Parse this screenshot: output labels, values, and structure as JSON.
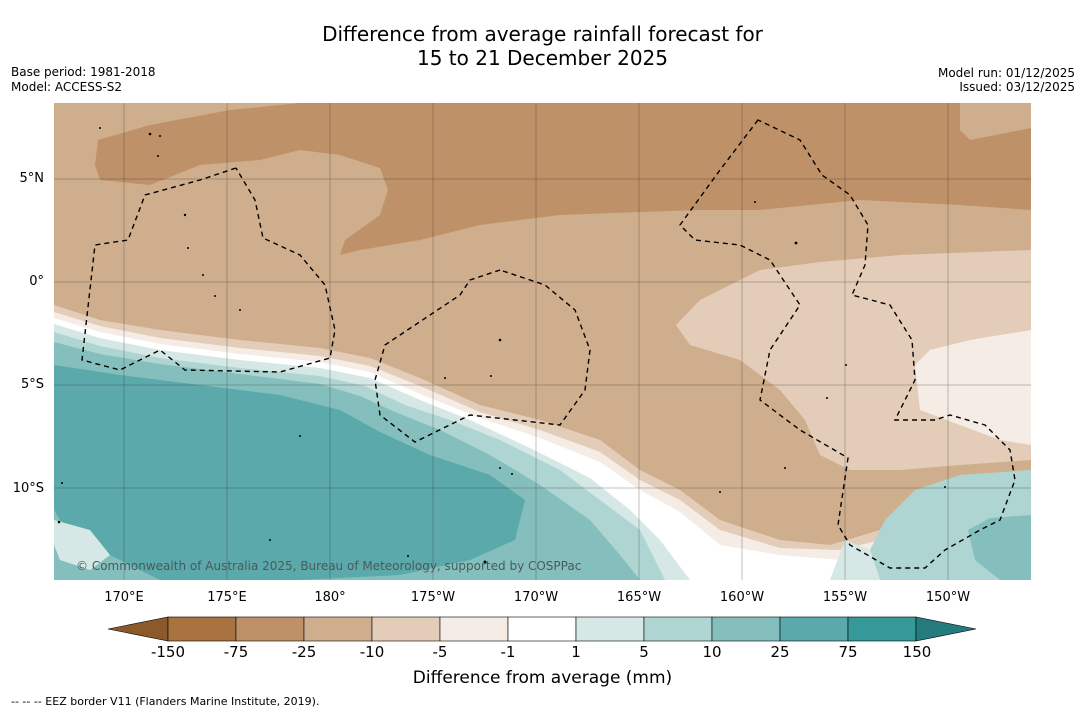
{
  "title": {
    "line1": "Difference from average rainfall forecast for",
    "line2": "15 to 21 December 2025"
  },
  "meta_left": {
    "base_period": "Base period: 1981-2018",
    "model": "Model: ACCESS-S2"
  },
  "meta_right": {
    "model_run": "Model run: 01/12/2025",
    "issued": "Issued: 03/12/2025"
  },
  "copyright": "© Commonwealth of Australia 2025, Bureau of Meteorology, supported by COSPPac",
  "lat_labels": [
    "5°N",
    "0°",
    "5°S",
    "10°S"
  ],
  "lon_labels": [
    "170°E",
    "175°E",
    "180°",
    "175°W",
    "170°W",
    "165°W",
    "160°W",
    "155°W",
    "150°W"
  ],
  "colorbar": {
    "title": "Difference from average (mm)",
    "ticks": [
      "-150",
      "-75",
      "-25",
      "-10",
      "-5",
      "-1",
      "1",
      "5",
      "10",
      "25",
      "75",
      "150"
    ],
    "colors": {
      "below": "#8c5a2a",
      "bins": [
        "#a8733f",
        "#be9168",
        "#cfae8e",
        "#e3cdb8",
        "#f5ece5",
        "#ffffff",
        "#d6e8e5",
        "#aed5d2",
        "#85bfbd",
        "#5ba9aa",
        "#35999a"
      ],
      "above": "#257b7e"
    }
  },
  "legend": {
    "eez": "--  --  -- EEZ border V11 (Flanders Marine Institute, 2019)."
  }
}
